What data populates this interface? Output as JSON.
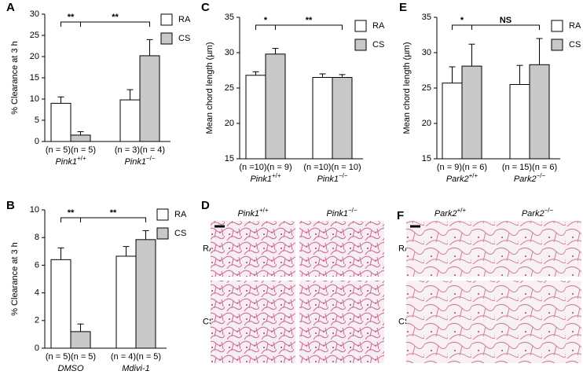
{
  "chart_data": [
    {
      "type": "bar",
      "panel": "A",
      "ylabel": "% Clearance at 3 h",
      "ylim": [
        0,
        30
      ],
      "yticks": [
        0,
        5,
        10,
        15,
        20,
        25,
        30
      ],
      "n_labels": [
        "(n = 5)(n = 5)",
        "(n = 3)(n = 4)"
      ],
      "groups": [
        {
          "name": "Pink1",
          "sup": "+/+"
        },
        {
          "name": "Pink1",
          "sup": "−/−"
        }
      ],
      "series": [
        {
          "name": "RA",
          "color": "#ffffff",
          "values": [
            9,
            9.8
          ],
          "errors": [
            1.5,
            2.4
          ]
        },
        {
          "name": "CS",
          "color": "#c8c8c8",
          "values": [
            1.5,
            20.2
          ],
          "errors": [
            0.8,
            3.8
          ]
        }
      ],
      "significance": [
        "**",
        "**"
      ]
    },
    {
      "type": "bar",
      "panel": "B",
      "ylabel": "% Clearance at 3 h",
      "ylim": [
        0,
        10
      ],
      "yticks": [
        0,
        2,
        4,
        6,
        8,
        10
      ],
      "n_labels": [
        "(n = 5)(n = 5)",
        "(n = 4)(n = 5)"
      ],
      "groups": [
        {
          "name": "DMSO"
        },
        {
          "name": "Mdivi-1"
        }
      ],
      "series": [
        {
          "name": "RA",
          "color": "#ffffff",
          "values": [
            6.4,
            6.65
          ],
          "errors": [
            0.85,
            0.7
          ]
        },
        {
          "name": "CS",
          "color": "#c8c8c8",
          "values": [
            1.2,
            7.85
          ],
          "errors": [
            0.55,
            0.65
          ]
        }
      ],
      "significance": [
        "**",
        "**"
      ]
    },
    {
      "type": "bar",
      "panel": "C",
      "ylabel": "Mean chord length (µm)",
      "ylim": [
        15,
        35
      ],
      "yticks": [
        15,
        20,
        25,
        30,
        35
      ],
      "n_labels": [
        "(n =10)(n = 9)",
        "(n =10)(n = 10)"
      ],
      "groups": [
        {
          "name": "Pink1",
          "sup": "+/+"
        },
        {
          "name": "Pink1",
          "sup": "−/−"
        }
      ],
      "series": [
        {
          "name": "RA",
          "color": "#ffffff",
          "values": [
            26.8,
            26.5
          ],
          "errors": [
            0.5,
            0.5
          ]
        },
        {
          "name": "CS",
          "color": "#c8c8c8",
          "values": [
            29.8,
            26.5
          ],
          "errors": [
            0.8,
            0.4
          ]
        }
      ],
      "significance": [
        "*",
        "**"
      ]
    },
    {
      "type": "bar",
      "panel": "E",
      "ylabel": "Mean chord length (µm)",
      "ylim": [
        15,
        35
      ],
      "yticks": [
        15,
        20,
        25,
        30,
        35
      ],
      "n_labels": [
        "(n = 9)(n = 6)",
        "(n = 15)(n = 6)"
      ],
      "groups": [
        {
          "name": "Park2",
          "sup": "+/+"
        },
        {
          "name": "Park2",
          "sup": "−/−"
        }
      ],
      "series": [
        {
          "name": "RA",
          "color": "#ffffff",
          "values": [
            25.7,
            25.5
          ],
          "errors": [
            2.3,
            2.7
          ]
        },
        {
          "name": "CS",
          "color": "#c8c8c8",
          "values": [
            28.1,
            28.3
          ],
          "errors": [
            3.1,
            3.7
          ]
        }
      ],
      "significance": [
        "*",
        "NS"
      ]
    }
  ],
  "images": [
    {
      "panel": "D",
      "columns": [
        {
          "name": "Pink1",
          "sup": "+/+"
        },
        {
          "name": "Pink1",
          "sup": "−/−"
        }
      ],
      "rows": [
        "RA",
        "CS"
      ]
    },
    {
      "panel": "F",
      "columns": [
        {
          "name": "Park2",
          "sup": "+/+"
        },
        {
          "name": "Park2",
          "sup": "−/−"
        }
      ],
      "rows": [
        "RA",
        "CS"
      ]
    }
  ]
}
